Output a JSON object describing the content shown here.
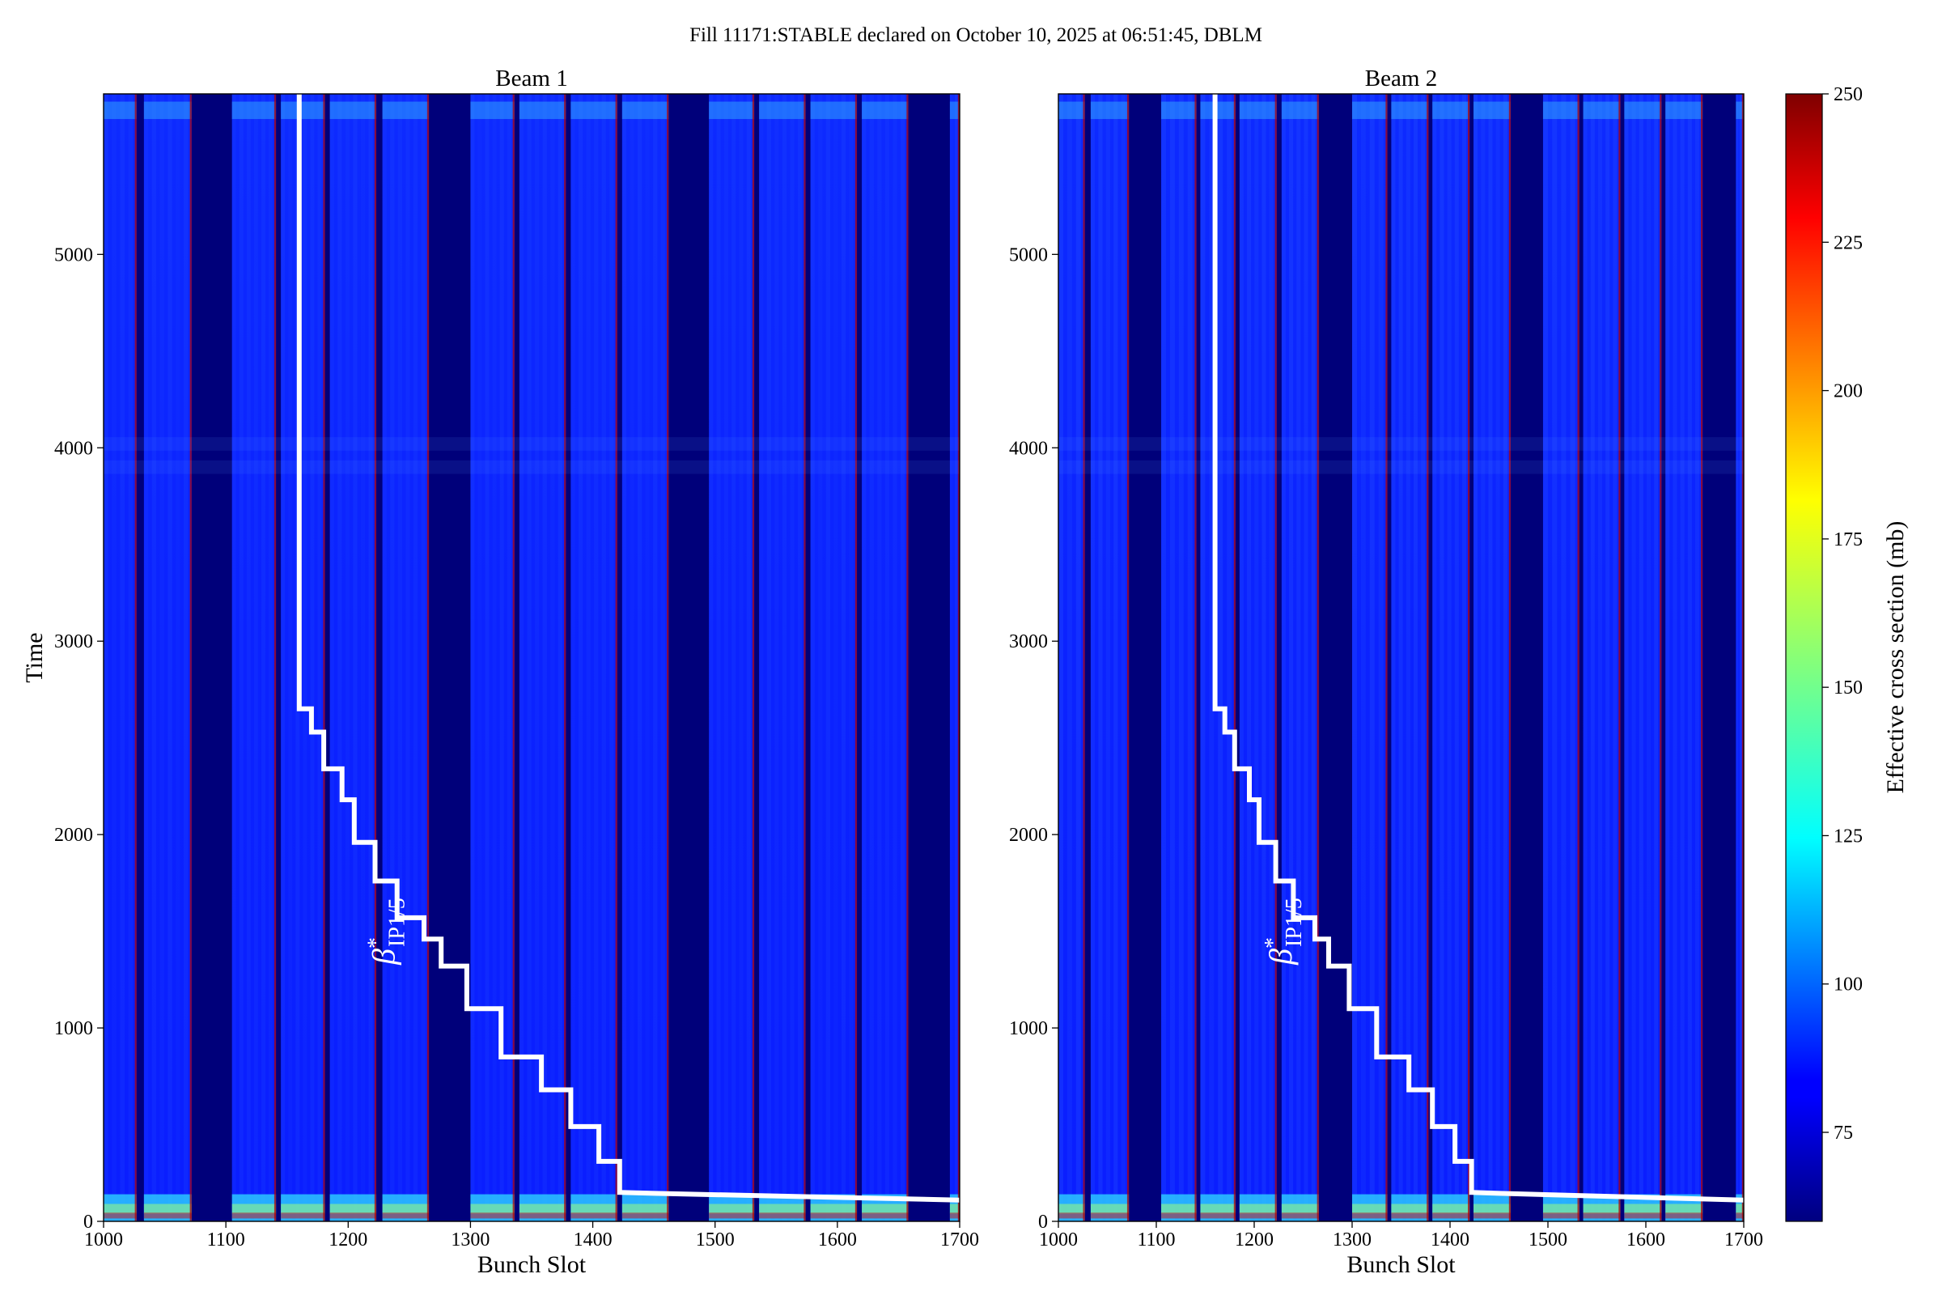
{
  "figure": {
    "suptitle": "Fill 11171:STABLE declared on October 10, 2025 at 06:51:45, DBLM",
    "colormap": "jet",
    "colors": {
      "background_low": "#00007a",
      "band_base": "#0a1cff",
      "band_dense": "#1a50ff",
      "band_edge_hot": "#b00000",
      "step_line": "#ffffff"
    }
  },
  "chart_data": [
    {
      "type": "heatmap",
      "title": "Beam 1",
      "xlabel": "Bunch Slot",
      "ylabel": "Time",
      "xlim": [
        1000,
        1700
      ],
      "ylim": [
        0,
        5830
      ],
      "xticks": [
        1000,
        1100,
        1200,
        1300,
        1400,
        1500,
        1600,
        1700
      ],
      "yticks": [
        0,
        1000,
        2000,
        3000,
        4000,
        5000
      ],
      "colorscale_range": [
        60,
        250
      ],
      "filled_slot_ranges": [
        [
          1000,
          1027
        ],
        [
          1033,
          1072
        ],
        [
          1105,
          1141
        ],
        [
          1145,
          1181
        ],
        [
          1185,
          1223
        ],
        [
          1228,
          1266
        ],
        [
          1300,
          1336
        ],
        [
          1340,
          1378
        ],
        [
          1382,
          1420
        ],
        [
          1424,
          1462
        ],
        [
          1495,
          1532
        ],
        [
          1536,
          1574
        ],
        [
          1578,
          1616
        ],
        [
          1620,
          1658
        ],
        [
          1692,
          1700
        ]
      ],
      "annotation": {
        "label": "β*IP1/5",
        "base": "β",
        "sup": "*",
        "sub": "IP1/5",
        "at": [
          1238,
          1500
        ]
      },
      "step_line": {
        "label": "β*IP1/5",
        "points": [
          [
            1160,
            5830
          ],
          [
            1160,
            2650
          ],
          [
            1170,
            2650
          ],
          [
            1170,
            2530
          ],
          [
            1180,
            2530
          ],
          [
            1180,
            2340
          ],
          [
            1195,
            2340
          ],
          [
            1195,
            2180
          ],
          [
            1205,
            2180
          ],
          [
            1205,
            1960
          ],
          [
            1222,
            1960
          ],
          [
            1222,
            1760
          ],
          [
            1240,
            1760
          ],
          [
            1240,
            1570
          ],
          [
            1262,
            1570
          ],
          [
            1262,
            1460
          ],
          [
            1276,
            1460
          ],
          [
            1276,
            1320
          ],
          [
            1297,
            1320
          ],
          [
            1297,
            1100
          ],
          [
            1325,
            1100
          ],
          [
            1325,
            850
          ],
          [
            1358,
            850
          ],
          [
            1358,
            680
          ],
          [
            1382,
            680
          ],
          [
            1382,
            490
          ],
          [
            1405,
            490
          ],
          [
            1405,
            310
          ],
          [
            1422,
            310
          ],
          [
            1422,
            150
          ],
          [
            1450,
            145
          ],
          [
            1700,
            110
          ]
        ]
      }
    },
    {
      "type": "heatmap",
      "title": "Beam 2",
      "xlabel": "Bunch Slot",
      "ylabel": "",
      "xlim": [
        1000,
        1700
      ],
      "ylim": [
        0,
        5830
      ],
      "xticks": [
        1000,
        1100,
        1200,
        1300,
        1400,
        1500,
        1600,
        1700
      ],
      "yticks": [
        0,
        1000,
        2000,
        3000,
        4000,
        5000
      ],
      "colorscale_range": [
        60,
        250
      ],
      "filled_slot_ranges": [
        [
          1000,
          1027
        ],
        [
          1033,
          1072
        ],
        [
          1105,
          1141
        ],
        [
          1145,
          1181
        ],
        [
          1185,
          1223
        ],
        [
          1228,
          1266
        ],
        [
          1300,
          1336
        ],
        [
          1340,
          1378
        ],
        [
          1382,
          1420
        ],
        [
          1424,
          1462
        ],
        [
          1495,
          1532
        ],
        [
          1536,
          1574
        ],
        [
          1578,
          1616
        ],
        [
          1620,
          1658
        ],
        [
          1692,
          1700
        ]
      ],
      "annotation": {
        "label": "β*IP1/5",
        "base": "β",
        "sup": "*",
        "sub": "IP1/5",
        "at": [
          1238,
          1500
        ]
      },
      "step_line": {
        "label": "β*IP1/5",
        "points": [
          [
            1160,
            5830
          ],
          [
            1160,
            2650
          ],
          [
            1170,
            2650
          ],
          [
            1170,
            2530
          ],
          [
            1180,
            2530
          ],
          [
            1180,
            2340
          ],
          [
            1195,
            2340
          ],
          [
            1195,
            2180
          ],
          [
            1205,
            2180
          ],
          [
            1205,
            1960
          ],
          [
            1222,
            1960
          ],
          [
            1222,
            1760
          ],
          [
            1240,
            1760
          ],
          [
            1240,
            1570
          ],
          [
            1262,
            1570
          ],
          [
            1262,
            1460
          ],
          [
            1276,
            1460
          ],
          [
            1276,
            1320
          ],
          [
            1297,
            1320
          ],
          [
            1297,
            1100
          ],
          [
            1325,
            1100
          ],
          [
            1325,
            850
          ],
          [
            1358,
            850
          ],
          [
            1358,
            680
          ],
          [
            1382,
            680
          ],
          [
            1382,
            490
          ],
          [
            1405,
            490
          ],
          [
            1405,
            310
          ],
          [
            1422,
            310
          ],
          [
            1422,
            150
          ],
          [
            1450,
            145
          ],
          [
            1700,
            110
          ]
        ]
      }
    }
  ],
  "colorbar": {
    "label": "Effective cross section (mb)",
    "min": 60,
    "max": 250,
    "ticks": [
      75,
      100,
      125,
      150,
      175,
      200,
      225,
      250
    ],
    "colormap": "jet"
  }
}
